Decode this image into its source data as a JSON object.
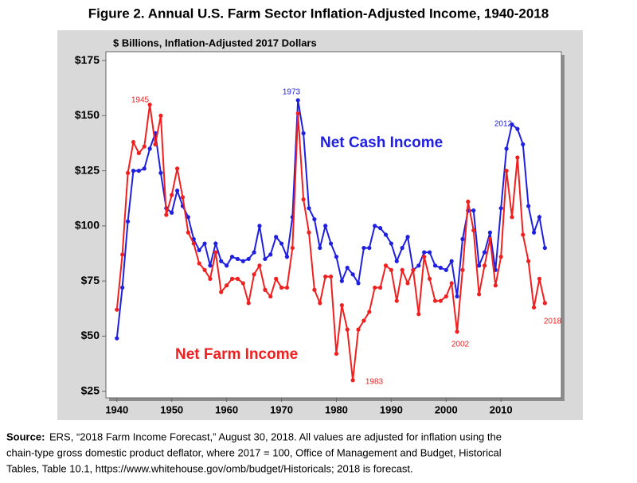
{
  "chart_data": {
    "type": "line",
    "title": "Figure 2. Annual U.S. Farm Sector Inflation-Adjusted Income, 1940-2018",
    "subtitle": "$ Billions, Inflation-Adjusted 2017 Dollars",
    "x": [
      1940,
      1941,
      1942,
      1943,
      1944,
      1945,
      1946,
      1947,
      1948,
      1949,
      1950,
      1951,
      1952,
      1953,
      1954,
      1955,
      1956,
      1957,
      1958,
      1959,
      1960,
      1961,
      1962,
      1963,
      1964,
      1965,
      1966,
      1967,
      1968,
      1969,
      1970,
      1971,
      1972,
      1973,
      1974,
      1975,
      1976,
      1977,
      1978,
      1979,
      1980,
      1981,
      1982,
      1983,
      1984,
      1985,
      1986,
      1987,
      1988,
      1989,
      1990,
      1991,
      1992,
      1993,
      1994,
      1995,
      1996,
      1997,
      1998,
      1999,
      2000,
      2001,
      2002,
      2003,
      2004,
      2005,
      2006,
      2007,
      2008,
      2009,
      2010,
      2011,
      2012,
      2013,
      2014,
      2015,
      2016,
      2017,
      2018
    ],
    "series": [
      {
        "name": "Net Cash Income",
        "color": "#1f1fe0",
        "values": [
          49,
          72,
          102,
          125,
          125,
          126,
          135,
          142,
          124,
          108,
          106,
          116,
          109,
          104,
          94,
          89,
          92,
          82,
          92,
          84,
          82,
          86,
          85,
          84,
          85,
          88,
          100,
          85,
          87,
          95,
          92,
          86,
          104,
          157,
          142,
          108,
          103,
          90,
          100,
          92,
          86,
          75,
          81,
          78,
          74,
          90,
          90,
          100,
          99,
          96,
          92,
          84,
          90,
          95,
          80,
          82,
          88,
          88,
          82,
          81,
          80,
          84,
          68,
          94,
          107,
          107,
          82,
          88,
          97,
          80,
          108,
          135,
          146,
          144,
          137,
          109,
          97,
          104,
          90
        ]
      },
      {
        "name": "Net Farm Income",
        "color": "#f02020",
        "values": [
          62,
          87,
          124,
          138,
          133,
          136,
          155,
          137,
          150,
          105,
          114,
          126,
          113,
          97,
          92,
          83,
          80,
          76,
          88,
          70,
          73,
          76,
          76,
          74,
          65,
          78,
          82,
          71,
          68,
          76,
          72,
          72,
          90,
          151,
          112,
          97,
          71,
          65,
          77,
          77,
          42,
          64,
          53,
          30,
          53,
          57,
          61,
          72,
          72,
          82,
          80,
          66,
          80,
          74,
          80,
          60,
          86,
          76,
          66,
          66,
          68,
          74,
          52,
          80,
          111,
          98,
          69,
          82,
          94,
          73,
          86,
          125,
          104,
          131,
          96,
          84,
          63,
          76,
          65
        ]
      }
    ],
    "annotations": [
      "1945",
      "1973",
      "2012",
      "2002",
      "1983",
      "2018"
    ],
    "xlim": [
      1938,
      2021
    ],
    "xticks": [
      1940,
      1950,
      1960,
      1970,
      1980,
      1990,
      2000,
      2010
    ],
    "ylim": [
      22,
      179
    ],
    "yticks": [
      {
        "value": 25,
        "label": "$25"
      },
      {
        "value": 50,
        "label": "$50"
      },
      {
        "value": 75,
        "label": "$75"
      },
      {
        "value": 100,
        "label": "$100"
      },
      {
        "value": 125,
        "label": "$125"
      },
      {
        "value": 150,
        "label": "$150"
      },
      {
        "value": 175,
        "label": "$175"
      }
    ],
    "grid": false,
    "source_label": "Source:",
    "source_lines": [
      "ERS, “2018 Farm Income Forecast,” August 30, 2018. All values are adjusted for inflation using the",
      "chain-type gross domestic product deflator, where 2017 = 100, Office of Management and Budget, Historical",
      "Tables, Table 10.1, https://www.whitehouse.gov/omb/budget/Historicals; 2018 is forecast."
    ]
  }
}
